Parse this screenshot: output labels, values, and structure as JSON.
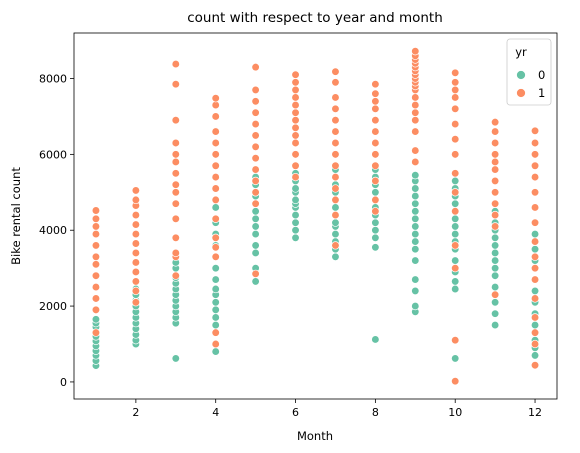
{
  "chart_data": {
    "type": "scatter",
    "title": "count with respect to year and month",
    "xlabel": "Month",
    "ylabel": "Bike rental count",
    "xlim": [
      0.45,
      12.55
    ],
    "ylim": [
      -450,
      9200
    ],
    "xticks": [
      2,
      4,
      6,
      8,
      10,
      12
    ],
    "yticks": [
      0,
      2000,
      4000,
      6000,
      8000
    ],
    "grid": false,
    "legend": {
      "title": "yr",
      "placement": "top-right",
      "entries": [
        {
          "label": "0",
          "color": "#66c2a5"
        },
        {
          "label": "1",
          "color": "#fc8d62"
        }
      ]
    },
    "series": [
      {
        "name": "0",
        "color": "#66c2a5",
        "points": [
          [
            1,
            430
          ],
          [
            1,
            560
          ],
          [
            1,
            700
          ],
          [
            1,
            820
          ],
          [
            1,
            950
          ],
          [
            1,
            1080
          ],
          [
            1,
            1200
          ],
          [
            1,
            1320
          ],
          [
            1,
            1450
          ],
          [
            1,
            1550
          ],
          [
            1,
            1650
          ],
          [
            2,
            1000
          ],
          [
            2,
            1100
          ],
          [
            2,
            1250
          ],
          [
            2,
            1400
          ],
          [
            2,
            1550
          ],
          [
            2,
            1700
          ],
          [
            2,
            1850
          ],
          [
            2,
            2000
          ],
          [
            2,
            2150
          ],
          [
            2,
            2300
          ],
          [
            2,
            2450
          ],
          [
            3,
            620
          ],
          [
            3,
            1550
          ],
          [
            3,
            1700
          ],
          [
            3,
            1850
          ],
          [
            3,
            2000
          ],
          [
            3,
            2150
          ],
          [
            3,
            2300
          ],
          [
            3,
            2450
          ],
          [
            3,
            2600
          ],
          [
            3,
            2750
          ],
          [
            3,
            3000
          ],
          [
            3,
            3150
          ],
          [
            4,
            800
          ],
          [
            4,
            1500
          ],
          [
            4,
            1700
          ],
          [
            4,
            1900
          ],
          [
            4,
            2100
          ],
          [
            4,
            2300
          ],
          [
            4,
            2450
          ],
          [
            4,
            2700
          ],
          [
            4,
            3000
          ],
          [
            4,
            3300
          ],
          [
            4,
            3600
          ],
          [
            4,
            3900
          ],
          [
            4,
            4200
          ],
          [
            4,
            4600
          ],
          [
            5,
            2650
          ],
          [
            5,
            3000
          ],
          [
            5,
            3400
          ],
          [
            5,
            3600
          ],
          [
            5,
            3900
          ],
          [
            5,
            4100
          ],
          [
            5,
            4300
          ],
          [
            5,
            4500
          ],
          [
            5,
            4700
          ],
          [
            5,
            4900
          ],
          [
            5,
            5000
          ],
          [
            5,
            5200
          ],
          [
            5,
            5400
          ],
          [
            5,
            5900
          ],
          [
            6,
            3800
          ],
          [
            6,
            4000
          ],
          [
            6,
            4200
          ],
          [
            6,
            4400
          ],
          [
            6,
            4600
          ],
          [
            6,
            4700
          ],
          [
            6,
            4800
          ],
          [
            6,
            5000
          ],
          [
            6,
            5100
          ],
          [
            6,
            5300
          ],
          [
            6,
            5500
          ],
          [
            6,
            5700
          ],
          [
            6,
            6000
          ],
          [
            7,
            3300
          ],
          [
            7,
            3500
          ],
          [
            7,
            3700
          ],
          [
            7,
            3900
          ],
          [
            7,
            4100
          ],
          [
            7,
            4200
          ],
          [
            7,
            4400
          ],
          [
            7,
            4600
          ],
          [
            7,
            4800
          ],
          [
            7,
            5000
          ],
          [
            7,
            5200
          ],
          [
            7,
            5400
          ],
          [
            7,
            5600
          ],
          [
            8,
            1120
          ],
          [
            8,
            3550
          ],
          [
            8,
            3800
          ],
          [
            8,
            4000
          ],
          [
            8,
            4200
          ],
          [
            8,
            4400
          ],
          [
            8,
            4600
          ],
          [
            8,
            4800
          ],
          [
            8,
            5000
          ],
          [
            8,
            5200
          ],
          [
            8,
            5400
          ],
          [
            8,
            5600
          ],
          [
            9,
            1850
          ],
          [
            9,
            2000
          ],
          [
            9,
            2400
          ],
          [
            9,
            2700
          ],
          [
            9,
            3200
          ],
          [
            9,
            3500
          ],
          [
            9,
            3700
          ],
          [
            9,
            3900
          ],
          [
            9,
            4100
          ],
          [
            9,
            4300
          ],
          [
            9,
            4500
          ],
          [
            9,
            4700
          ],
          [
            9,
            4900
          ],
          [
            9,
            5100
          ],
          [
            9,
            5300
          ],
          [
            9,
            5450
          ],
          [
            10,
            620
          ],
          [
            10,
            2450
          ],
          [
            10,
            2650
          ],
          [
            10,
            2900
          ],
          [
            10,
            3200
          ],
          [
            10,
            3500
          ],
          [
            10,
            3700
          ],
          [
            10,
            3900
          ],
          [
            10,
            4100
          ],
          [
            10,
            4300
          ],
          [
            10,
            4500
          ],
          [
            10,
            4700
          ],
          [
            10,
            4900
          ],
          [
            10,
            5100
          ],
          [
            10,
            5300
          ],
          [
            11,
            1500
          ],
          [
            11,
            1800
          ],
          [
            11,
            2100
          ],
          [
            11,
            2500
          ],
          [
            11,
            2800
          ],
          [
            11,
            3000
          ],
          [
            11,
            3200
          ],
          [
            11,
            3400
          ],
          [
            11,
            3600
          ],
          [
            11,
            3800
          ],
          [
            11,
            4000
          ],
          [
            11,
            4200
          ],
          [
            11,
            4500
          ],
          [
            12,
            700
          ],
          [
            12,
            900
          ],
          [
            12,
            1100
          ],
          [
            12,
            1500
          ],
          [
            12,
            1800
          ],
          [
            12,
            2100
          ],
          [
            12,
            2400
          ],
          [
            12,
            2700
          ],
          [
            12,
            3000
          ],
          [
            12,
            3200
          ],
          [
            12,
            3500
          ],
          [
            12,
            3700
          ],
          [
            12,
            3900
          ]
        ]
      },
      {
        "name": "1",
        "color": "#fc8d62",
        "points": [
          [
            1,
            1300
          ],
          [
            1,
            1900
          ],
          [
            1,
            2200
          ],
          [
            1,
            2500
          ],
          [
            1,
            2800
          ],
          [
            1,
            3100
          ],
          [
            1,
            3300
          ],
          [
            1,
            3600
          ],
          [
            1,
            3900
          ],
          [
            1,
            4100
          ],
          [
            1,
            4300
          ],
          [
            1,
            4520
          ],
          [
            2,
            2100
          ],
          [
            2,
            2400
          ],
          [
            2,
            2650
          ],
          [
            2,
            2900
          ],
          [
            2,
            3150
          ],
          [
            2,
            3400
          ],
          [
            2,
            3650
          ],
          [
            2,
            3900
          ],
          [
            2,
            4150
          ],
          [
            2,
            4400
          ],
          [
            2,
            4650
          ],
          [
            2,
            4800
          ],
          [
            2,
            5050
          ],
          [
            3,
            2800
          ],
          [
            3,
            3300
          ],
          [
            3,
            3400
          ],
          [
            3,
            3800
          ],
          [
            3,
            4300
          ],
          [
            3,
            4700
          ],
          [
            3,
            5000
          ],
          [
            3,
            5200
          ],
          [
            3,
            5500
          ],
          [
            3,
            5800
          ],
          [
            3,
            6000
          ],
          [
            3,
            6300
          ],
          [
            3,
            6900
          ],
          [
            3,
            7850
          ],
          [
            3,
            8380
          ],
          [
            4,
            1000
          ],
          [
            4,
            1300
          ],
          [
            4,
            3300
          ],
          [
            4,
            3550
          ],
          [
            4,
            3800
          ],
          [
            4,
            4300
          ],
          [
            4,
            4800
          ],
          [
            4,
            5100
          ],
          [
            4,
            5400
          ],
          [
            4,
            5700
          ],
          [
            4,
            6000
          ],
          [
            4,
            6300
          ],
          [
            4,
            6600
          ],
          [
            4,
            7000
          ],
          [
            4,
            7300
          ],
          [
            4,
            7480
          ],
          [
            5,
            2850
          ],
          [
            5,
            4700
          ],
          [
            5,
            5000
          ],
          [
            5,
            5300
          ],
          [
            5,
            5600
          ],
          [
            5,
            5900
          ],
          [
            5,
            6200
          ],
          [
            5,
            6500
          ],
          [
            5,
            6800
          ],
          [
            5,
            7100
          ],
          [
            5,
            7400
          ],
          [
            5,
            7700
          ],
          [
            5,
            8300
          ],
          [
            6,
            5400
          ],
          [
            6,
            5700
          ],
          [
            6,
            6000
          ],
          [
            6,
            6300
          ],
          [
            6,
            6500
          ],
          [
            6,
            6700
          ],
          [
            6,
            6900
          ],
          [
            6,
            7100
          ],
          [
            6,
            7300
          ],
          [
            6,
            7500
          ],
          [
            6,
            7700
          ],
          [
            6,
            7900
          ],
          [
            6,
            8100
          ],
          [
            7,
            3600
          ],
          [
            7,
            4400
          ],
          [
            7,
            4800
          ],
          [
            7,
            5100
          ],
          [
            7,
            5400
          ],
          [
            7,
            5700
          ],
          [
            7,
            6000
          ],
          [
            7,
            6300
          ],
          [
            7,
            6600
          ],
          [
            7,
            6900
          ],
          [
            7,
            7200
          ],
          [
            7,
            7500
          ],
          [
            7,
            7900
          ],
          [
            7,
            8180
          ],
          [
            8,
            4500
          ],
          [
            8,
            4800
          ],
          [
            8,
            5300
          ],
          [
            8,
            5700
          ],
          [
            8,
            6000
          ],
          [
            8,
            6300
          ],
          [
            8,
            6600
          ],
          [
            8,
            6900
          ],
          [
            8,
            7200
          ],
          [
            8,
            7400
          ],
          [
            8,
            7600
          ],
          [
            8,
            7850
          ],
          [
            9,
            5800
          ],
          [
            9,
            6100
          ],
          [
            9,
            6600
          ],
          [
            9,
            6900
          ],
          [
            9,
            7100
          ],
          [
            9,
            7300
          ],
          [
            9,
            7500
          ],
          [
            9,
            7700
          ],
          [
            9,
            7800
          ],
          [
            9,
            7900
          ],
          [
            9,
            8000
          ],
          [
            9,
            8100
          ],
          [
            9,
            8200
          ],
          [
            9,
            8300
          ],
          [
            9,
            8400
          ],
          [
            9,
            8500
          ],
          [
            9,
            8600
          ],
          [
            9,
            8720
          ],
          [
            10,
            20
          ],
          [
            10,
            1100
          ],
          [
            10,
            3000
          ],
          [
            10,
            3600
          ],
          [
            10,
            4500
          ],
          [
            10,
            5000
          ],
          [
            10,
            5500
          ],
          [
            10,
            6000
          ],
          [
            10,
            6400
          ],
          [
            10,
            6800
          ],
          [
            10,
            7200
          ],
          [
            10,
            7500
          ],
          [
            10,
            7700
          ],
          [
            10,
            7900
          ],
          [
            10,
            8150
          ],
          [
            11,
            2300
          ],
          [
            11,
            4100
          ],
          [
            11,
            4400
          ],
          [
            11,
            4700
          ],
          [
            11,
            5000
          ],
          [
            11,
            5300
          ],
          [
            11,
            5600
          ],
          [
            11,
            5800
          ],
          [
            11,
            6000
          ],
          [
            11,
            6300
          ],
          [
            11,
            6600
          ],
          [
            11,
            6850
          ],
          [
            12,
            440
          ],
          [
            12,
            1000
          ],
          [
            12,
            1300
          ],
          [
            12,
            1700
          ],
          [
            12,
            2200
          ],
          [
            12,
            2700
          ],
          [
            12,
            3000
          ],
          [
            12,
            3300
          ],
          [
            12,
            3700
          ],
          [
            12,
            4200
          ],
          [
            12,
            4600
          ],
          [
            12,
            5000
          ],
          [
            12,
            5400
          ],
          [
            12,
            5700
          ],
          [
            12,
            6000
          ],
          [
            12,
            6300
          ],
          [
            12,
            6620
          ]
        ]
      }
    ]
  }
}
